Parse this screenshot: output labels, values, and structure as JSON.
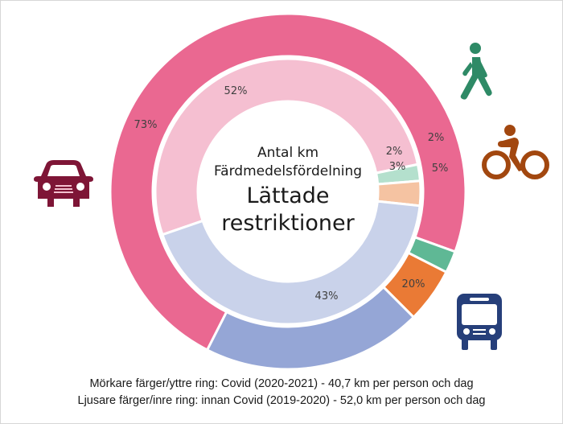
{
  "chart_data": {
    "type": "donut",
    "title": "Antal km Färdmedelsfördelning",
    "subtitle": "Lättade restriktioner",
    "categories": [
      "Bil",
      "Gång",
      "Cykel",
      "Kollektivtrafik"
    ],
    "series": [
      {
        "name": "Covid (2020-2021) - yttre ring",
        "ring": "outer",
        "values": [
          73,
          2,
          5,
          20
        ],
        "labels": [
          "73%",
          "2%",
          "5%",
          "20%"
        ],
        "colors": [
          "#ea6891",
          "#5fb895",
          "#ea7a35",
          "#95a6d6"
        ]
      },
      {
        "name": "Innan Covid (2019-2020) - inre ring",
        "ring": "inner",
        "values": [
          52,
          2,
          3,
          43
        ],
        "labels": [
          "52%",
          "2%",
          "3%",
          "43%"
        ],
        "colors": [
          "#f5bfd1",
          "#b4e0cd",
          "#f5c3a2",
          "#c9d2ea"
        ]
      }
    ],
    "legend_position": "bottom",
    "icons": [
      "car-icon",
      "walking-person-icon",
      "bicycle-icon",
      "bus-icon"
    ]
  },
  "center": {
    "line1": "Antal km",
    "line2": "Färdmedelsfördelning",
    "line3": "Lättade",
    "line4": "restriktioner"
  },
  "footer": {
    "line1": "Mörkare färger/yttre ring: Covid (2020-2021) - 40,7 km per person och dag",
    "line2": "Ljusare färger/inre ring: innan Covid (2019-2020) - 52,0 km per person och dag"
  },
  "colors": {
    "car": "#7e1536",
    "walk": "#2e8a66",
    "bike": "#a2470f",
    "bus": "#263f7a"
  }
}
